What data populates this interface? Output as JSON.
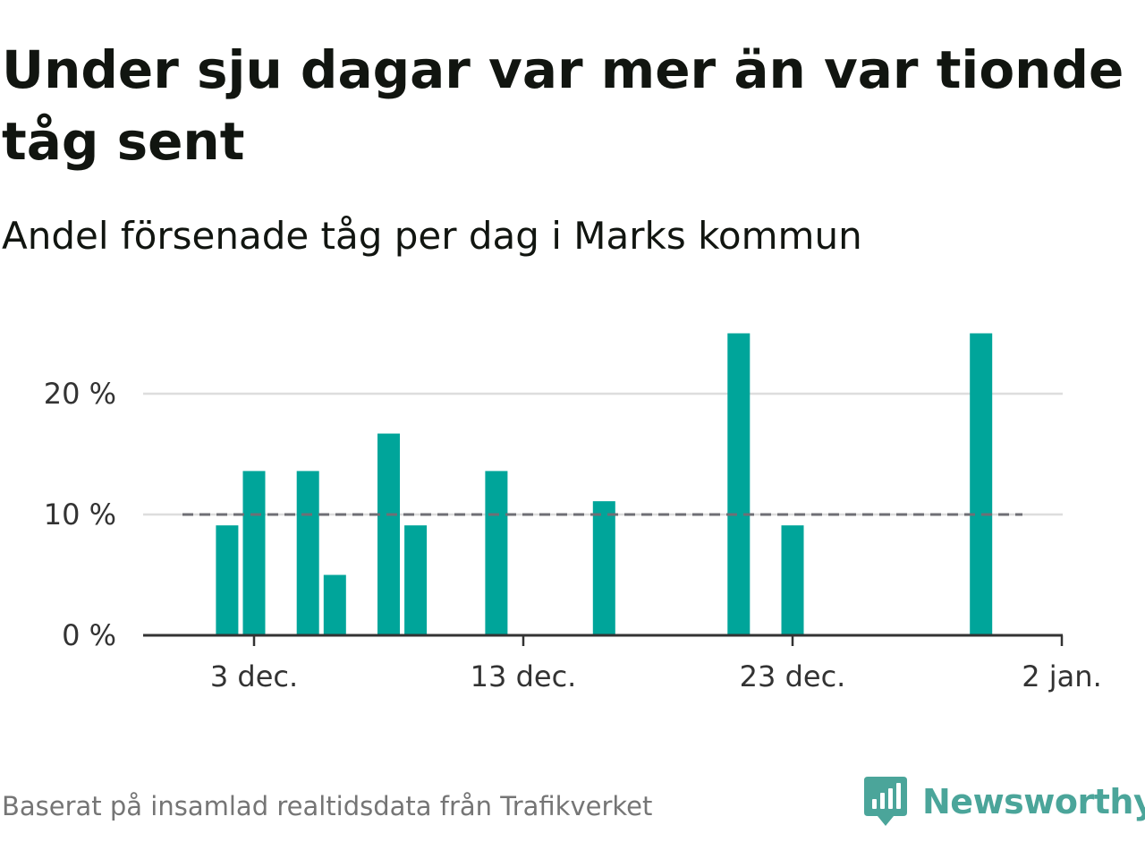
{
  "title": "Under sju dagar var mer än var tionde tåg sent",
  "subtitle": "Andel försenade tåg per dag i Marks kommun",
  "source": "Baserat på insamlad realtidsdata från Trafikverket",
  "brand": "Newsworthy",
  "colors": {
    "bar": "#00a59a",
    "reference_line": "#6f6f75",
    "grid": "#dddddd",
    "axis": "#333333",
    "brand": "#4ba59a"
  },
  "chart_data": {
    "type": "bar",
    "x_tick_labels": [
      "3 dec.",
      "13 dec.",
      "23 dec.",
      "2 jan."
    ],
    "y_tick_labels": [
      "0 %",
      "10 %",
      "20 %"
    ],
    "ylim": [
      0,
      25
    ],
    "grid": true,
    "reference_line": 10,
    "bars": [
      {
        "date": "2 dec.",
        "value": 9.1
      },
      {
        "date": "3 dec.",
        "value": 13.6
      },
      {
        "date": "5 dec.",
        "value": 13.6
      },
      {
        "date": "6 dec.",
        "value": 5.0
      },
      {
        "date": "8 dec.",
        "value": 16.7
      },
      {
        "date": "9 dec.",
        "value": 9.1
      },
      {
        "date": "12 dec.",
        "value": 13.6
      },
      {
        "date": "16 dec.",
        "value": 11.1
      },
      {
        "date": "21 dec.",
        "value": 25.0
      },
      {
        "date": "23 dec.",
        "value": 9.1
      },
      {
        "date": "30 dec.",
        "value": 25.0
      }
    ]
  }
}
